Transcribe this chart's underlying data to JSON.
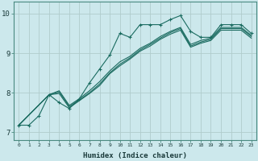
{
  "title": "",
  "xlabel": "Humidex (Indice chaleur)",
  "ylabel": "",
  "bg_color": "#cce8ec",
  "line_color": "#1a6b60",
  "grid_color": "#b0cccc",
  "xlim": [
    -0.5,
    23.5
  ],
  "ylim": [
    6.8,
    10.3
  ],
  "yticks": [
    7,
    8,
    9,
    10
  ],
  "xticks": [
    0,
    1,
    2,
    3,
    4,
    5,
    6,
    7,
    8,
    9,
    10,
    11,
    12,
    13,
    14,
    15,
    16,
    17,
    18,
    19,
    20,
    21,
    22,
    23
  ],
  "lines": [
    {
      "x": [
        0,
        1,
        2,
        3,
        4,
        5,
        6,
        7,
        8,
        9,
        10,
        11,
        12,
        13,
        14,
        15,
        16,
        17,
        18,
        19,
        20,
        21,
        22,
        23
      ],
      "y": [
        7.18,
        7.18,
        7.42,
        7.95,
        7.75,
        7.6,
        7.85,
        8.25,
        8.6,
        8.95,
        9.5,
        9.4,
        9.72,
        9.72,
        9.72,
        9.85,
        9.95,
        9.55,
        9.4,
        9.4,
        9.72,
        9.72,
        9.72,
        9.5
      ],
      "has_markers": true
    },
    {
      "x": [
        0,
        3,
        4,
        5,
        6,
        7,
        8,
        9,
        10,
        11,
        12,
        13,
        14,
        15,
        16,
        17,
        18,
        19,
        20,
        21,
        22,
        23
      ],
      "y": [
        7.18,
        7.95,
        8.02,
        7.65,
        7.82,
        8.0,
        8.22,
        8.5,
        8.72,
        8.88,
        9.08,
        9.22,
        9.38,
        9.52,
        9.62,
        9.18,
        9.28,
        9.35,
        9.62,
        9.62,
        9.62,
        9.42
      ],
      "has_markers": false
    },
    {
      "x": [
        0,
        3,
        4,
        5,
        6,
        7,
        8,
        9,
        10,
        11,
        12,
        13,
        14,
        15,
        16,
        17,
        18,
        19,
        20,
        21,
        22,
        23
      ],
      "y": [
        7.18,
        7.95,
        7.98,
        7.62,
        7.8,
        7.98,
        8.18,
        8.48,
        8.68,
        8.85,
        9.05,
        9.18,
        9.35,
        9.48,
        9.58,
        9.15,
        9.25,
        9.32,
        9.58,
        9.58,
        9.58,
        9.38
      ],
      "has_markers": false
    },
    {
      "x": [
        0,
        3,
        4,
        5,
        6,
        7,
        8,
        9,
        10,
        11,
        12,
        13,
        14,
        15,
        16,
        17,
        18,
        19,
        20,
        21,
        22,
        23
      ],
      "y": [
        7.18,
        7.95,
        8.05,
        7.68,
        7.85,
        8.05,
        8.28,
        8.55,
        8.78,
        8.92,
        9.12,
        9.25,
        9.42,
        9.55,
        9.65,
        9.22,
        9.32,
        9.38,
        9.65,
        9.65,
        9.65,
        9.45
      ],
      "has_markers": false
    }
  ]
}
